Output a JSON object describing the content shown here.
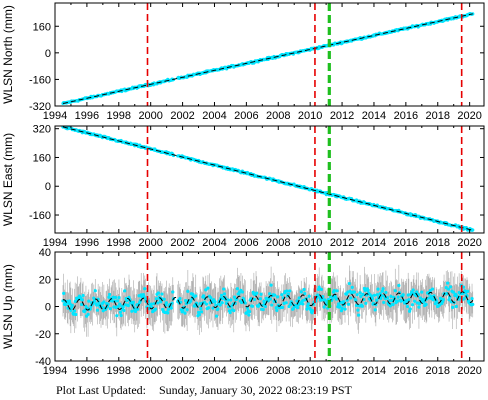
{
  "footer": {
    "label": "Plot Last Updated:",
    "timestamp": "Sunday, January 30, 2022 08:23:19 PST"
  },
  "colors": {
    "data": "#00e5ff",
    "errorbar": "#a9a9a9",
    "fit": "#000000",
    "red_line": "#e60000",
    "green_line": "#1fbf1f"
  },
  "chart_data": [
    {
      "type": "scatter",
      "ylabel": "WLSN North (mm)",
      "xlim": [
        1994,
        2020.9
      ],
      "ylim": [
        -320,
        300
      ],
      "xticks": [
        1994,
        1996,
        1998,
        2000,
        2002,
        2004,
        2006,
        2008,
        2010,
        2012,
        2014,
        2016,
        2018,
        2020
      ],
      "yticks": [
        -320,
        -160,
        0,
        160
      ],
      "ytick_labels": [
        "-320",
        "-160",
        "0",
        "160"
      ],
      "trend": [
        [
          1994.5,
          -305
        ],
        [
          2020.2,
          235
        ]
      ],
      "err": 4,
      "noise": 5,
      "seasonal": 0,
      "red_vlines": [
        1999.8,
        2010.3,
        2019.5
      ],
      "green_vlines": [
        2011.2
      ]
    },
    {
      "type": "scatter",
      "ylabel": "WLSN East (mm)",
      "xlim": [
        1994,
        2020.9
      ],
      "ylim": [
        -260,
        335
      ],
      "xticks": [
        1994,
        1996,
        1998,
        2000,
        2002,
        2004,
        2006,
        2008,
        2010,
        2012,
        2014,
        2016,
        2018,
        2020
      ],
      "yticks": [
        -160,
        0,
        160,
        320
      ],
      "ytick_labels": [
        "-160",
        "0",
        "160",
        "320"
      ],
      "trend": [
        [
          1994.5,
          330
        ],
        [
          2020.2,
          -245
        ]
      ],
      "err": 4,
      "noise": 5,
      "seasonal": 0,
      "red_vlines": [
        1999.8,
        2010.3,
        2019.5
      ],
      "green_vlines": [
        2011.2
      ]
    },
    {
      "type": "scatter",
      "ylabel": "WLSN Up (mm)",
      "xlim": [
        1994,
        2020.9
      ],
      "ylim": [
        -40,
        40
      ],
      "xticks": [
        1994,
        1996,
        1998,
        2000,
        2002,
        2004,
        2006,
        2008,
        2010,
        2012,
        2014,
        2016,
        2018,
        2020
      ],
      "yticks": [
        -40,
        -20,
        0,
        20,
        40
      ],
      "ytick_labels": [
        "-40",
        "-20",
        "0",
        "20",
        "40"
      ],
      "trend": [
        [
          1994.5,
          1
        ],
        [
          2020.2,
          7
        ]
      ],
      "err": 12,
      "noise": 6,
      "seasonal": 4,
      "red_vlines": [
        1999.8,
        2010.3,
        2019.5
      ],
      "green_vlines": [
        2011.2
      ]
    }
  ]
}
